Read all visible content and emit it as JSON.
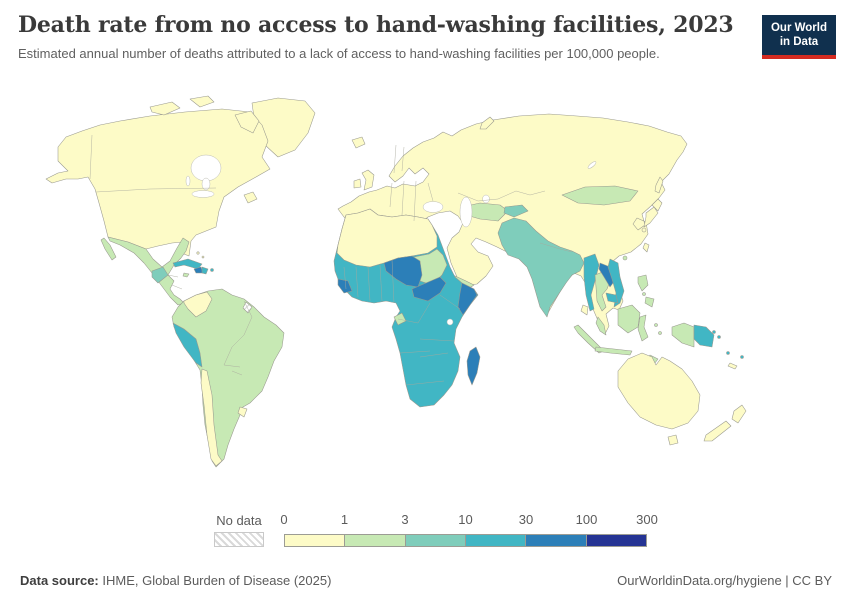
{
  "header": {
    "title": "Death rate from no access to hand-washing facilities, 2023",
    "subtitle": "Estimated annual number of deaths attributed to a lack of access to hand-washing facilities per 100,000 people.",
    "logo": {
      "line1": "Our World",
      "line2": "in Data",
      "bg_color": "#10304e",
      "accent_color": "#d42b21"
    }
  },
  "map": {
    "ocean_color": "#ffffff",
    "palette": [
      {
        "id": "band0",
        "range": "0-1",
        "color": "#fdfbc7"
      },
      {
        "id": "band1",
        "range": "1-3",
        "color": "#c7e9b4"
      },
      {
        "id": "band2",
        "range": "3-10",
        "color": "#7fcdbb"
      },
      {
        "id": "band3",
        "range": "10-30",
        "color": "#41b6c4"
      },
      {
        "id": "band4",
        "range": "30-100",
        "color": "#2c7fb8"
      },
      {
        "id": "band5",
        "range": "100-300",
        "color": "#253494"
      }
    ],
    "regions": {
      "greenland": 0,
      "iceland": 0,
      "north-america": 0,
      "arctic-islands": 0,
      "newfoundland": 0,
      "bahamas": 0,
      "mexico-central-america": 1,
      "baja-california": 1,
      "guatemala": 2,
      "cuba": 3,
      "haiti": 4,
      "dominican-republic": 3,
      "jamaica": 1,
      "puerto-rico": 3,
      "south-america": 1,
      "colombia": 0,
      "peru": 3,
      "chile": 0,
      "uruguay": 0,
      "french-guiana": "no-data",
      "eurasia": 0,
      "novaya-zemlya": 0,
      "mongolia": 1,
      "central-asia": 1,
      "kyrgyzstan-tajikistan": 2,
      "south-asia": 2,
      "sri-lanka": 0,
      "myanmar": 3,
      "thailand": 1,
      "laos": 4,
      "vietnam": 3,
      "cambodia": 3,
      "malaysia": 1,
      "hainan": 1,
      "taiwan": 0,
      "yemen": 1,
      "japan": 0,
      "sakhalin": 0,
      "africa": 3,
      "north-africa": 0,
      "sudan": 1,
      "niger-chad": 4,
      "central-african-republic-south-sudan": 4,
      "somalia": 4,
      "guinea-sierra-leone": 4,
      "gabon": 1,
      "madagascar": 4,
      "sumatra": 1,
      "java": 1,
      "borneo": 1,
      "sulawesi": 1,
      "moluccas": 1,
      "west-papua": 1,
      "papua-new-guinea": 3,
      "philippines": 1,
      "timor": 1,
      "australia": 0,
      "tasmania": 0,
      "new-zealand": 0,
      "new-caledonia": 0,
      "solomon-islands": 3,
      "vanuatu": 3,
      "fiji": 3
    }
  },
  "legend": {
    "no_data_label": "No data",
    "ticks": [
      "0",
      "1",
      "3",
      "10",
      "30",
      "100",
      "300"
    ]
  },
  "footer": {
    "source_label": "Data source:",
    "source_text": " IHME, Global Burden of Disease (2025)",
    "right_text": "OurWorldinData.org/hygiene | CC BY"
  }
}
